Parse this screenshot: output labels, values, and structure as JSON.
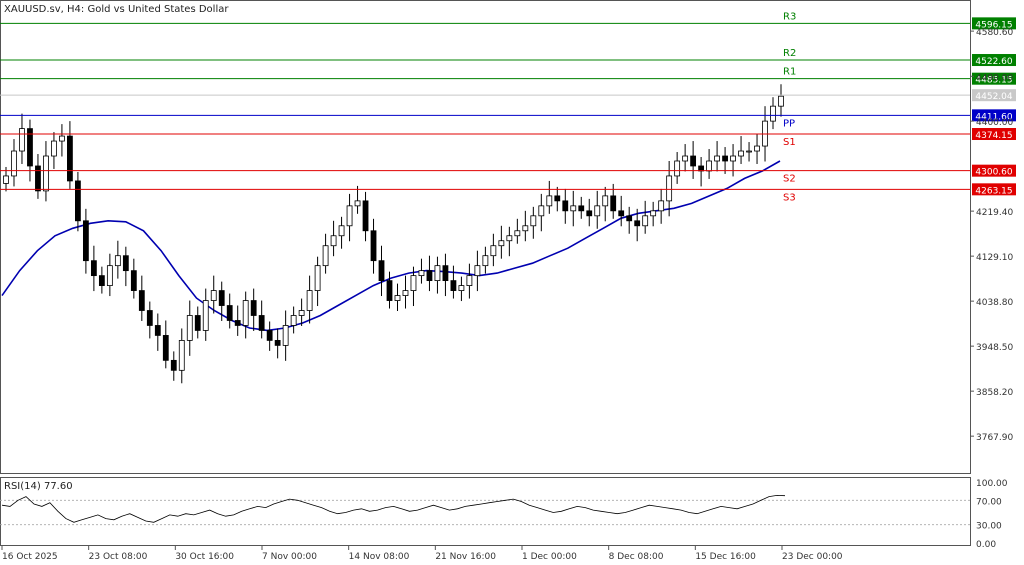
{
  "chart_data": {
    "type": "candlestick",
    "title": "XAUUSD.sv, H4:  Gold vs United States Dollar",
    "price_range": [
      3700,
      4635
    ],
    "price_ticks": [
      "4580.60",
      "4490.00",
      "4400.00",
      "4219.40",
      "4129.10",
      "4038.80",
      "3948.50",
      "3858.20",
      "3767.90"
    ],
    "price_tick_values": [
      4580.6,
      4490.0,
      4400.0,
      4219.4,
      4129.1,
      4038.8,
      3948.5,
      3858.2,
      3767.9
    ],
    "time_labels": [
      "16 Oct 2025",
      "23 Oct 08:00",
      "30 Oct 16:00",
      "7 Nov 00:00",
      "14 Nov 08:00",
      "21 Nov 16:00",
      "1 Dec 00:00",
      "8 Dec 08:00",
      "15 Dec 16:00",
      "23 Dec 00:00"
    ],
    "levels": [
      {
        "name": "R3",
        "value": 4596.15,
        "label": "4596.15",
        "color": "#008000"
      },
      {
        "name": "R2",
        "value": 4522.6,
        "label": "4522.60",
        "color": "#008000"
      },
      {
        "name": "R1",
        "value": 4485.15,
        "label": "4485.15",
        "color": "#008000"
      },
      {
        "name": "PP",
        "value": 4411.6,
        "label": "4411.60",
        "color": "#0000c8"
      },
      {
        "name": "S1",
        "value": 4374.15,
        "label": "4374.15",
        "color": "#e00000"
      },
      {
        "name": "S2",
        "value": 4300.6,
        "label": "4300.60",
        "color": "#e00000"
      },
      {
        "name": "S3",
        "value": 4263.15,
        "label": "4263.15",
        "color": "#e00000"
      }
    ],
    "current_price": {
      "value": 4452.04,
      "label": "4452.04"
    },
    "close_series": [
      4290,
      4340,
      4385,
      4310,
      4260,
      4330,
      4360,
      4370,
      4280,
      4200,
      4120,
      4090,
      4070,
      4110,
      4130,
      4100,
      4060,
      4020,
      3990,
      3970,
      3920,
      3900,
      3960,
      4010,
      3980,
      4040,
      4060,
      4030,
      4000,
      3990,
      4040,
      4010,
      3980,
      3960,
      3950,
      3990,
      4010,
      4020,
      4060,
      4110,
      4150,
      4170,
      4190,
      4230,
      4240,
      4180,
      4120,
      4080,
      4040,
      4050,
      4060,
      4090,
      4100,
      4080,
      4110,
      4080,
      4060,
      4070,
      4090,
      4110,
      4130,
      4150,
      4160,
      4170,
      4180,
      4190,
      4210,
      4230,
      4250,
      4240,
      4220,
      4230,
      4220,
      4210,
      4230,
      4250,
      4220,
      4210,
      4200,
      4190,
      4210,
      4220,
      4240,
      4290,
      4320,
      4330,
      4310,
      4300,
      4320,
      4330,
      4320,
      4330,
      4340,
      4340,
      4350,
      4400,
      4430,
      4450
    ],
    "ma_series": [
      4050,
      4100,
      4140,
      4170,
      4185,
      4195,
      4200,
      4198,
      4180,
      4140,
      4090,
      4045,
      4020,
      4000,
      3985,
      3980,
      3985,
      3995,
      4010,
      4030,
      4050,
      4070,
      4085,
      4095,
      4100,
      4098,
      4095,
      4090,
      4095,
      4105,
      4115,
      4130,
      4145,
      4165,
      4185,
      4205,
      4215,
      4220,
      4225,
      4235,
      4250,
      4265,
      4285,
      4300,
      4320
    ],
    "rsi": {
      "label": "RSI(14) 77.60",
      "range": [
        0,
        100
      ],
      "ticks": [
        "100.00",
        "70.00",
        "30.00",
        "0.00"
      ],
      "tick_values": [
        100,
        70,
        30,
        0
      ],
      "values": [
        62,
        60,
        70,
        76,
        64,
        60,
        66,
        52,
        40,
        34,
        38,
        42,
        46,
        40,
        38,
        44,
        48,
        42,
        36,
        34,
        40,
        46,
        44,
        48,
        46,
        50,
        54,
        48,
        44,
        46,
        52,
        56,
        60,
        58,
        64,
        68,
        72,
        70,
        66,
        62,
        58,
        52,
        48,
        50,
        54,
        56,
        52,
        54,
        58,
        60,
        56,
        52,
        54,
        58,
        62,
        58,
        54,
        56,
        60,
        62,
        64,
        66,
        68,
        70,
        72,
        68,
        62,
        58,
        54,
        50,
        52,
        56,
        60,
        58,
        54,
        52,
        50,
        48,
        50,
        54,
        58,
        62,
        60,
        58,
        56,
        54,
        50,
        48,
        52,
        56,
        60,
        58,
        56,
        60,
        64,
        70,
        76,
        78,
        77.6
      ]
    }
  }
}
